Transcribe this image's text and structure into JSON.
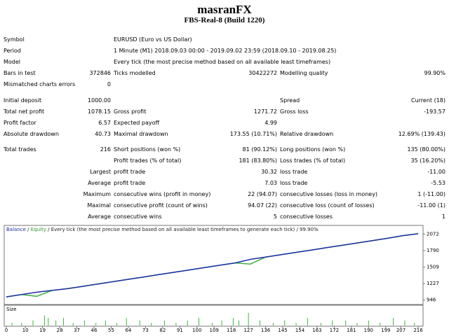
{
  "header": {
    "title": "masranFX",
    "subtitle": "FBS-Real-8 (Build 1220)"
  },
  "rows": [
    [
      "Symbol",
      null,
      "EURUSD (Euro vs US Dollar)",
      null,
      null,
      null
    ],
    [
      "Period",
      null,
      "1 Minute (M1) 2018.09.03 00:00 - 2019.09.02 23:59 (2018.09.10 - 2019.08.25)",
      null,
      null,
      null
    ],
    [
      "Model",
      null,
      "Every tick (the most precise method based on all available least timeframes)",
      null,
      null,
      null
    ],
    [
      "Bars in test",
      "372846",
      "Ticks modelled",
      "30422272",
      "Modelling quality",
      "99.90%"
    ],
    [
      "Mismatched charts errors",
      "0",
      null,
      null,
      null,
      null
    ],
    [
      "Initial deposit",
      "1000.00",
      null,
      null,
      "Spread",
      "Current (18)"
    ],
    [
      "Total net profit",
      "1078.15",
      "Gross profit",
      "1271.72",
      "Gross loss",
      "-193.57"
    ],
    [
      "Profit factor",
      "6.57",
      "Expected payoff",
      "4.99",
      null,
      null
    ],
    [
      "Absolute drawdown",
      "40.73",
      "Maximal drawdown",
      "173.55 (10.71%)",
      "Relative drawdown",
      "12.69% (139.43)"
    ],
    [
      "Total trades",
      "216",
      "Short positions (won %)",
      "81 (90.12%)",
      "Long positions (won %)",
      "135 (80.00%)"
    ],
    [
      null,
      null,
      "Profit trades (% of total)",
      "181 (83.80%)",
      "Loss trades (% of total)",
      "35 (16.20%)"
    ],
    [
      null,
      "Largest",
      "profit trade",
      "30.32",
      "loss trade",
      "-11.00"
    ],
    [
      null,
      "Average",
      "profit trade",
      "7.03",
      "loss trade",
      "-5.53"
    ],
    [
      null,
      "Maximum",
      "consecutive wins (profit in money)",
      "22 (94.07)",
      "consecutive losses (loss in money)",
      "1 (-11.00)"
    ],
    [
      null,
      "Maximal",
      "consecutive profit (count of wins)",
      "94.07 (22)",
      "consecutive loss (count of losses)",
      "-11.00 (1)"
    ],
    [
      null,
      "Average",
      "consecutive wins",
      "5",
      "consecutive losses",
      "1"
    ]
  ],
  "chart": {
    "legend": {
      "balance": "Balance",
      "equity": "Equity",
      "model": "Every tick (the most precise method based on all available least timeframes to generate each tick)",
      "quality": "99.90%"
    },
    "x": [
      0,
      8,
      16,
      24,
      32,
      40,
      48,
      56,
      64,
      72,
      80,
      88,
      96,
      104,
      112,
      120,
      128,
      136,
      144,
      152,
      160,
      168,
      176,
      184,
      192,
      200,
      208,
      216
    ],
    "balance": [
      1000,
      1040,
      1080,
      1110,
      1140,
      1180,
      1220,
      1260,
      1300,
      1340,
      1380,
      1420,
      1460,
      1500,
      1540,
      1580,
      1640,
      1680,
      1720,
      1760,
      1800,
      1840,
      1880,
      1920,
      1960,
      2000,
      2045,
      2078
    ],
    "equity": [
      1000,
      1040,
      1010,
      1110,
      1140,
      1180,
      1220,
      1260,
      1300,
      1340,
      1380,
      1420,
      1460,
      1500,
      1540,
      1580,
      1560,
      1680,
      1720,
      1760,
      1800,
      1840,
      1880,
      1920,
      1960,
      2000,
      2045,
      2078
    ],
    "xlim": [
      0,
      216
    ],
    "ylim": [
      870,
      2220
    ],
    "yticks": [
      946,
      1227,
      1509,
      1790,
      2072
    ],
    "xticks": [
      0,
      10,
      19,
      28,
      37,
      46,
      55,
      64,
      73,
      82,
      91,
      100,
      109,
      118,
      127,
      136,
      145,
      154,
      163,
      172,
      181,
      190,
      199,
      207,
      216
    ],
    "size_label": "Size",
    "size_x": [
      3,
      8,
      14,
      20,
      22,
      26,
      30,
      35,
      41,
      47,
      52,
      58,
      63,
      70,
      76,
      83,
      89,
      95,
      101,
      108,
      113,
      119,
      122,
      127,
      133,
      140,
      146,
      152,
      158,
      165,
      171,
      178,
      184,
      190,
      196,
      203,
      209,
      214
    ],
    "size_values": [
      1,
      1,
      2,
      4,
      3,
      2,
      3,
      1,
      2,
      1,
      2,
      1,
      3,
      2,
      1,
      2,
      1,
      2,
      3,
      1,
      2,
      3,
      2,
      5,
      2,
      1,
      2,
      1,
      3,
      1,
      2,
      2,
      1,
      2,
      1,
      3,
      2,
      1
    ],
    "size_max": 5
  }
}
